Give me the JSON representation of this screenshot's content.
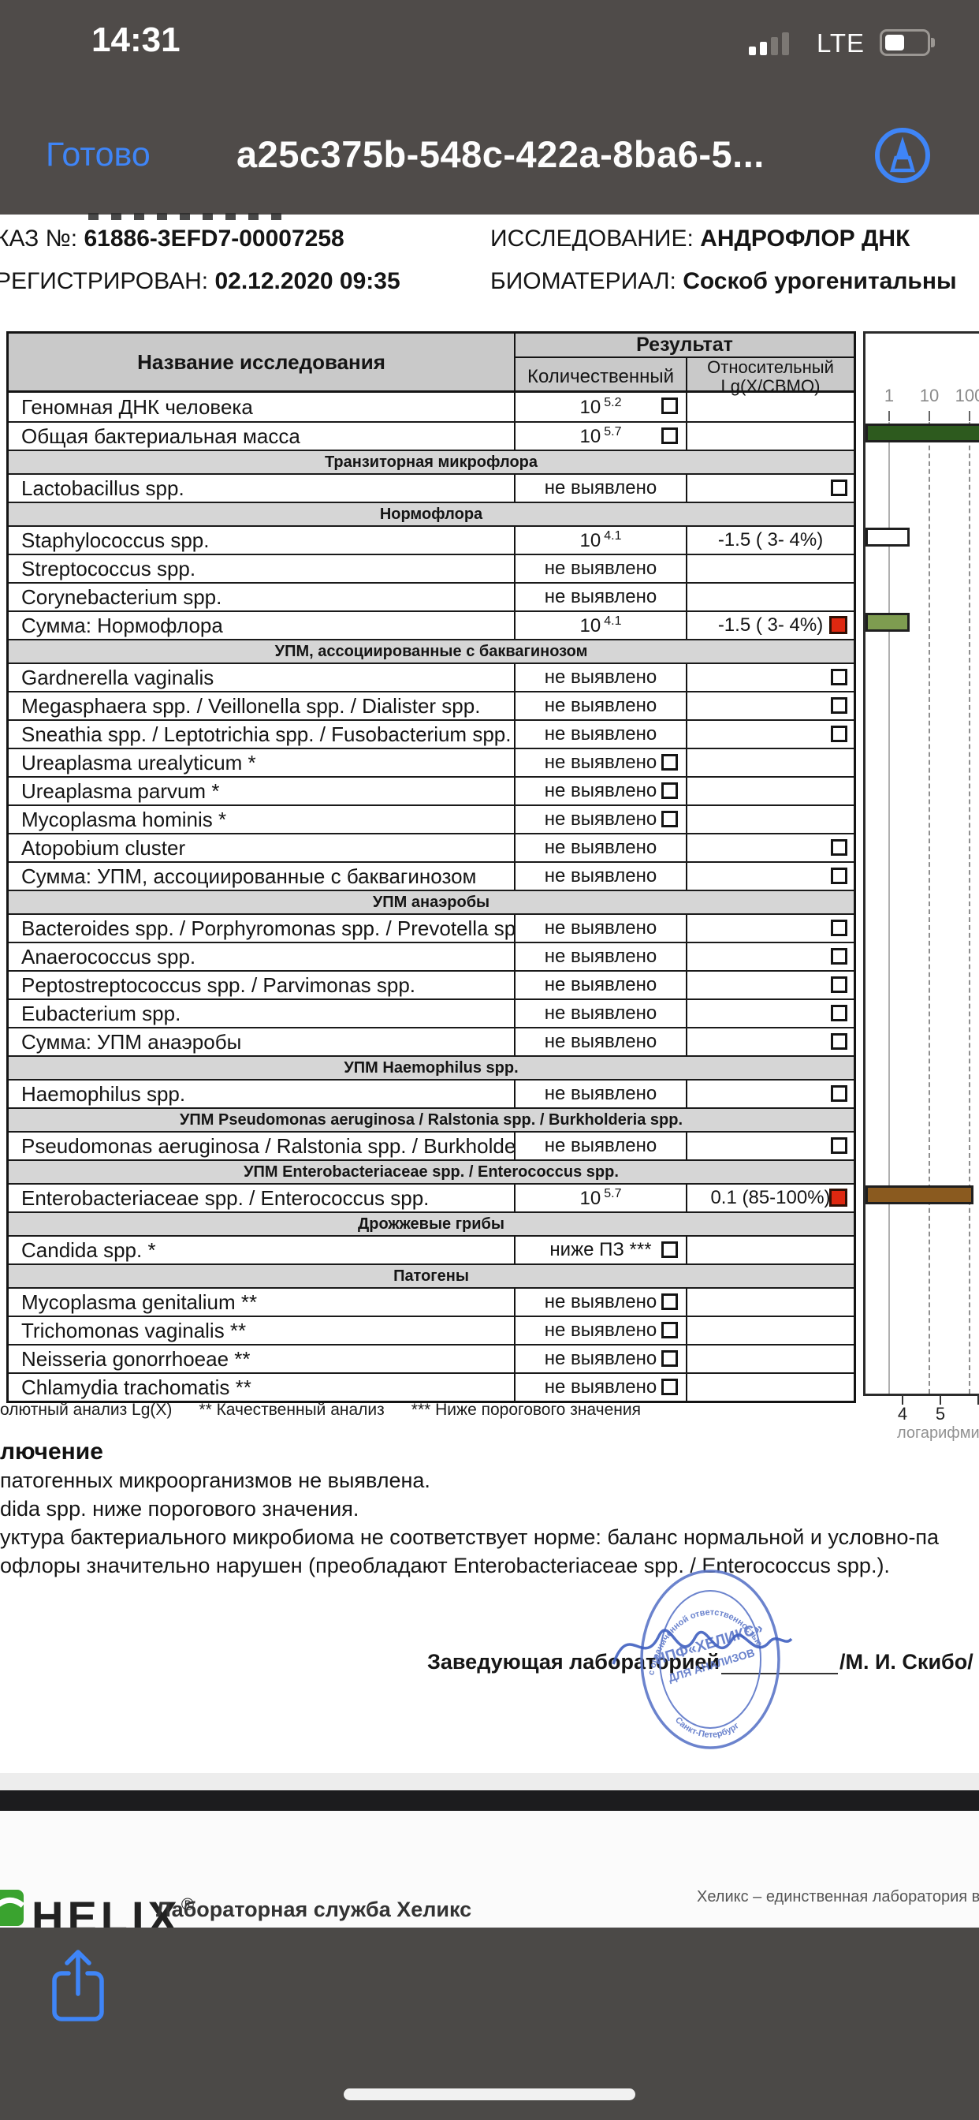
{
  "status_bar": {
    "time": "14:31",
    "network": "LTE",
    "battery_pct_visual": 40
  },
  "nav_bar": {
    "done_label": "Готово",
    "title": "a25c375b-548c-422a-8ba6-5..."
  },
  "colors": {
    "ios_blue": "#3f85f7",
    "flag_red": "#df2810",
    "bar_dark_green": "#2d5a1e",
    "bar_olive": "#7e9c50",
    "bar_brown": "#8a5a1f"
  },
  "document": {
    "header": {
      "order_label": "КАЗ №:",
      "order_value": "61886-3EFD7-00007258",
      "study_label": "ИССЛЕДОВАНИЕ:",
      "study_value": "АНДРОФЛОР ДНК",
      "registered_label": "РЕГИСТРИРОВАН:",
      "registered_value": "02.12.2020 09:35",
      "biomaterial_label": "БИОМАТЕРИАЛ:",
      "biomaterial_value": "Соскоб урогенитальны"
    },
    "table": {
      "col_name": "Название исследования",
      "col_result": "Результат",
      "col_quant": "Количественный",
      "col_rel_line1": "Относительный",
      "col_rel_line2": "Lg(X/СВМО)",
      "rows": [
        {
          "t": "row",
          "name": "Геномная ДНК человека",
          "q": "10",
          "qs": "5.2",
          "qcb": true
        },
        {
          "t": "row",
          "name": "Общая бактериальная масса",
          "q": "10",
          "qs": "5.7",
          "qcb": true
        },
        {
          "t": "sec",
          "name": "Транзиторная микрофлора"
        },
        {
          "t": "row",
          "name": "Lactobacillus spp.",
          "q": "не выявлено",
          "rcb": true
        },
        {
          "t": "sec",
          "name": "Нормофлора"
        },
        {
          "t": "row",
          "name": "Staphylococcus spp.",
          "q": "10",
          "qs": "4.1",
          "r": "-1.5 ( 3- 4%)"
        },
        {
          "t": "row",
          "name": "Streptococcus spp.",
          "q": "не выявлено"
        },
        {
          "t": "row",
          "name": "Corynebacterium spp.",
          "q": "не выявлено"
        },
        {
          "t": "row",
          "name": "Сумма: Нормофлора",
          "q": "10",
          "qs": "4.1",
          "r": "-1.5 ( 3- 4%)",
          "rflag": true
        },
        {
          "t": "sec",
          "name": "УПМ, ассоциированные с баквагинозом"
        },
        {
          "t": "row",
          "name": "Gardnerella vaginalis",
          "q": "не выявлено",
          "rcb": true
        },
        {
          "t": "row",
          "name": "Megasphaera spp. / Veillonella spp. / Dialister spp.",
          "q": "не выявлено",
          "rcb": true
        },
        {
          "t": "row",
          "name": "Sneathia spp. / Leptotrichia spp. / Fusobacterium spp.",
          "q": "не выявлено",
          "rcb": true
        },
        {
          "t": "row",
          "name": "Ureaplasma urealyticum *",
          "q": "не выявлено",
          "qcb": true
        },
        {
          "t": "row",
          "name": "Ureaplasma parvum *",
          "q": "не выявлено",
          "qcb": true
        },
        {
          "t": "row",
          "name": "Mycoplasma hominis *",
          "q": "не выявлено",
          "qcb": true
        },
        {
          "t": "row",
          "name": "Atopobium cluster",
          "q": "не выявлено",
          "rcb": true
        },
        {
          "t": "row",
          "name": "Сумма: УПМ, ассоциированные с баквагинозом",
          "q": "не выявлено",
          "rcb": true
        },
        {
          "t": "sec",
          "name": "УПМ анаэробы"
        },
        {
          "t": "row",
          "name": "Bacteroides spp. / Porphyromonas spp. / Prevotella spp.",
          "q": "не выявлено",
          "rcb": true
        },
        {
          "t": "row",
          "name": "Anaerococcus spp.",
          "q": "не выявлено",
          "rcb": true
        },
        {
          "t": "row",
          "name": "Peptostreptococcus spp. / Parvimonas spp.",
          "q": "не выявлено",
          "rcb": true
        },
        {
          "t": "row",
          "name": "Eubacterium spp.",
          "q": "не выявлено",
          "rcb": true
        },
        {
          "t": "row",
          "name": "Сумма: УПМ анаэробы",
          "q": "не выявлено",
          "rcb": true
        },
        {
          "t": "sec",
          "name": "УПМ Haemophilus spp."
        },
        {
          "t": "row",
          "name": "Haemophilus spp.",
          "q": "не выявлено",
          "rcb": true
        },
        {
          "t": "sec",
          "name": "УПМ Pseudomonas aeruginosa / Ralstonia spp. / Burkholderia spp."
        },
        {
          "t": "row",
          "name": "Pseudomonas aeruginosa / Ralstonia spp. / Burkholderia spp",
          "q": "не выявлено",
          "rcb": true
        },
        {
          "t": "sec",
          "name": "УПМ Enterobacteriaceae spp. / Enterococcus spp."
        },
        {
          "t": "row",
          "name": "Enterobacteriaceae spp. / Enterococcus spp.",
          "q": "10",
          "qs": "5.7",
          "r": "0.1 (85-100%)",
          "rflag": true
        },
        {
          "t": "sec",
          "name": "Дрожжевые грибы"
        },
        {
          "t": "row",
          "name": "Candida spp. *",
          "q": "ниже ПЗ ***",
          "qcb": true
        },
        {
          "t": "sec",
          "name": "Патогены"
        },
        {
          "t": "row",
          "name": "Mycoplasma genitalium **",
          "q": "не выявлено",
          "qcb": true
        },
        {
          "t": "row",
          "name": "Trichomonas vaginalis **",
          "q": "не выявлено",
          "qcb": true
        },
        {
          "t": "row",
          "name": "Neisseria gonorrhoeae **",
          "q": "не выявлено",
          "qcb": true
        },
        {
          "t": "row",
          "name": "Chlamydia trachomatis **",
          "q": "не выявлено",
          "qcb": true
        }
      ]
    },
    "chart_data": {
      "type": "bar",
      "orientation": "horizontal",
      "scale": "logarithmic",
      "top_axis_ticks": [
        "1",
        "10",
        "100"
      ],
      "bottom_axis_ticks": [
        "4",
        "5"
      ],
      "bottom_axis_label": "логарифмичес",
      "bars": [
        {
          "label": "Общая бактериальная масса",
          "row_index": 1,
          "color": "#2d5a1e",
          "length_pct": 107,
          "value": "10^5.7"
        },
        {
          "label": "Staphylococcus spp.",
          "row_index": 5,
          "color": "#ffffff",
          "length_pct": 38,
          "value": "10^4.1 (3-4%)"
        },
        {
          "label": "Сумма: Нормофлора",
          "row_index": 8,
          "color": "#7e9c50",
          "length_pct": 38,
          "value": "10^4.1 (3-4%)"
        },
        {
          "label": "Enterobacteriaceae spp. / Enterococcus spp.",
          "row_index": 29,
          "color": "#8a5a1f",
          "length_pct": 93,
          "value": "10^5.7 (85-100%)"
        }
      ]
    },
    "footnote": [
      "олютный анализ Lg(X)",
      "** Качественный анализ",
      "*** Ниже порогового значения"
    ],
    "conclusion": {
      "heading": "лючение",
      "lines": [
        "патогенных микроорганизмов не выявлена.",
        "dida spp. ниже порогового значения.",
        "уктура бактериального микробиома не соответствует норме: баланс нормальной и условно-па",
        "офлоры значительно нарушен (преобладают Enterobacteriaceae spp. / Enterococcus spp.)."
      ]
    },
    "signature": {
      "label": "Заведующая лабораторией",
      "name": "/М. И. Скибо/",
      "stamp_line1": "НПФ«ХЕЛИКС»",
      "stamp_line2": "ДЛЯ АНАЛИЗОВ",
      "stamp_arc_top": "с ограниченной ответственностью",
      "stamp_arc_bottom": "Санкт-Петербург"
    }
  },
  "page2_footer": {
    "logo_word": "HELIX",
    "reg_mark": "®",
    "left_text": "Лабораторная служба Хеликс",
    "right_text": "Хеликс – единственная лаборатория в СНГ, се"
  }
}
